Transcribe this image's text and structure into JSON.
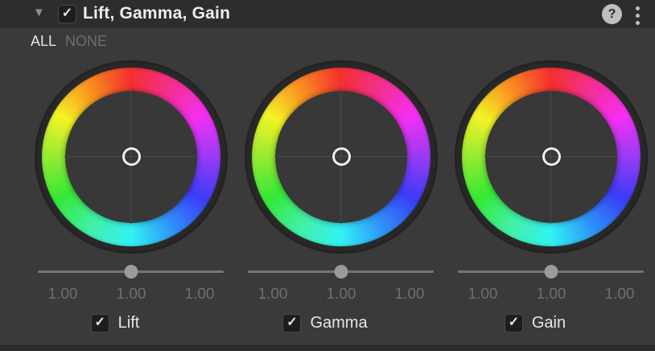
{
  "header": {
    "title": "Lift, Gamma, Gain",
    "enabled": true
  },
  "icons": {
    "foldout": "▼",
    "check": "✓",
    "help": "?"
  },
  "selection": {
    "all_label": "ALL",
    "none_label": "NONE"
  },
  "wheels": [
    {
      "label": "Lift",
      "checked": true,
      "slider_position_percent": 50,
      "fields": [
        "1.00",
        "1.00",
        "1.00"
      ]
    },
    {
      "label": "Gamma",
      "checked": true,
      "slider_position_percent": 50,
      "fields": [
        "1.00",
        "1.00",
        "1.00"
      ]
    },
    {
      "label": "Gain",
      "checked": true,
      "slider_position_percent": 50,
      "fields": [
        "1.00",
        "1.00",
        "1.00"
      ]
    }
  ],
  "colors": {
    "header_bg": "#2d2d2d",
    "panel_bg": "#3a3a3a",
    "wheel_inner_bg": "#383838",
    "wheel_outline": "#292929",
    "crosshair": "#4a4a4a",
    "slider_track": "#757575",
    "slider_thumb": "#9b9b9b",
    "text_primary": "#e8e8e8",
    "text_dim": "#6f6f6f"
  }
}
